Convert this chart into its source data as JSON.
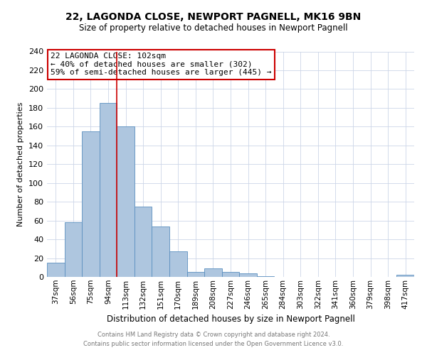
{
  "title": "22, LAGONDA CLOSE, NEWPORT PAGNELL, MK16 9BN",
  "subtitle": "Size of property relative to detached houses in Newport Pagnell",
  "xlabel": "Distribution of detached houses by size in Newport Pagnell",
  "ylabel": "Number of detached properties",
  "bin_labels": [
    "37sqm",
    "56sqm",
    "75sqm",
    "94sqm",
    "113sqm",
    "132sqm",
    "151sqm",
    "170sqm",
    "189sqm",
    "208sqm",
    "227sqm",
    "246sqm",
    "265sqm",
    "284sqm",
    "303sqm",
    "322sqm",
    "341sqm",
    "360sqm",
    "379sqm",
    "398sqm",
    "417sqm"
  ],
  "bar_heights": [
    15,
    58,
    155,
    185,
    160,
    75,
    54,
    27,
    5,
    9,
    5,
    4,
    1,
    0,
    0,
    0,
    0,
    0,
    0,
    0,
    2
  ],
  "bar_color": "#aec6df",
  "bar_edge_color": "#5a8fbf",
  "vline_color": "#cc0000",
  "ylim": [
    0,
    240
  ],
  "yticks": [
    0,
    20,
    40,
    60,
    80,
    100,
    120,
    140,
    160,
    180,
    200,
    220,
    240
  ],
  "annotation_title": "22 LAGONDA CLOSE: 102sqm",
  "annotation_line1": "← 40% of detached houses are smaller (302)",
  "annotation_line2": "59% of semi-detached houses are larger (445) →",
  "annotation_box_color": "#ffffff",
  "annotation_box_edge": "#cc0000",
  "footer1": "Contains HM Land Registry data © Crown copyright and database right 2024.",
  "footer2": "Contains public sector information licensed under the Open Government Licence v3.0.",
  "background_color": "#ffffff",
  "grid_color": "#ccd6e8",
  "title_fontsize": 10,
  "subtitle_fontsize": 8.5,
  "xlabel_fontsize": 8.5,
  "ylabel_fontsize": 8.0,
  "tick_fontsize": 7.5,
  "ytick_fontsize": 8.0,
  "annotation_fontsize": 8.0,
  "footer_fontsize": 6.0
}
